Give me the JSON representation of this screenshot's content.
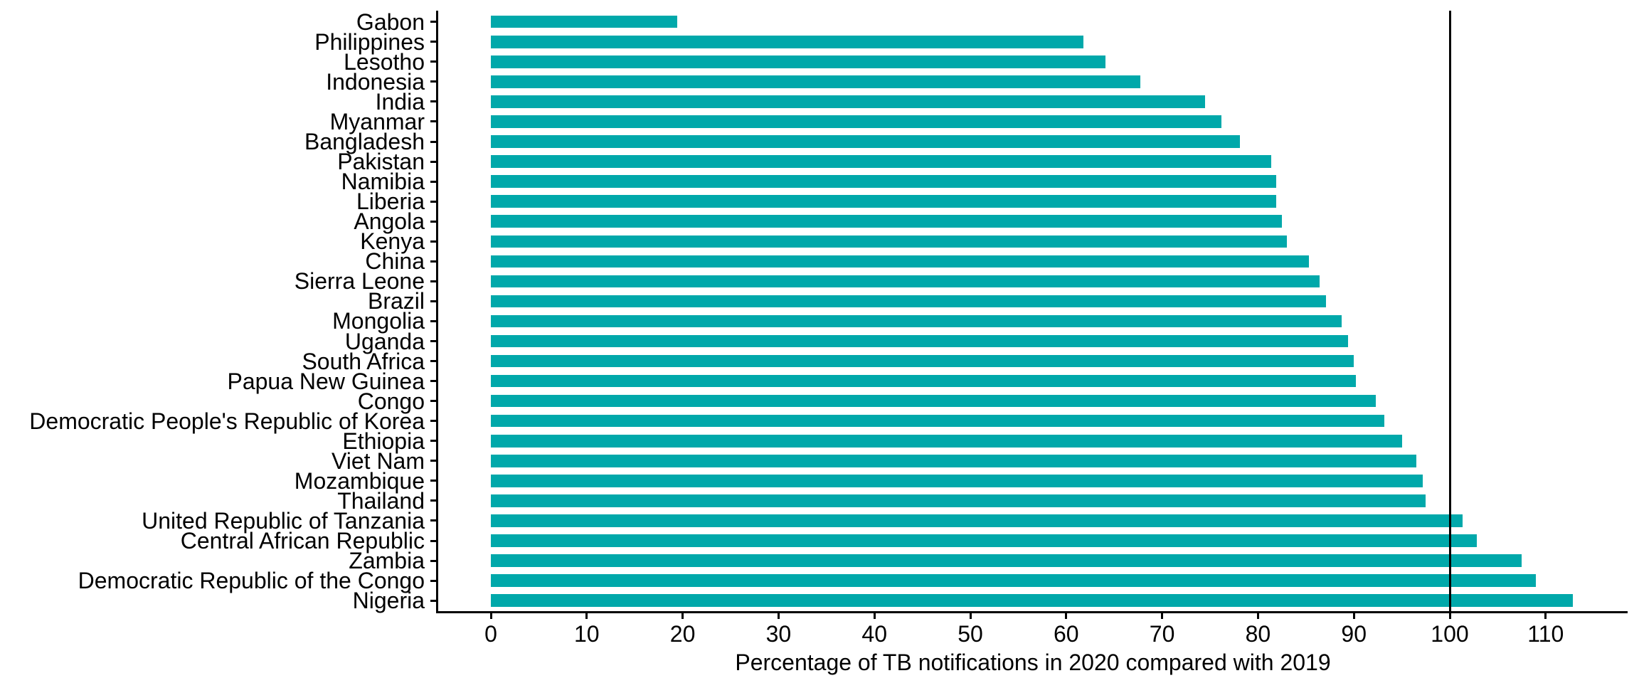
{
  "chart_data": {
    "type": "bar",
    "orientation": "horizontal",
    "title": "",
    "xlabel": "Percentage of TB notifications in 2020 compared with 2019",
    "ylabel": "",
    "categories": [
      "Gabon",
      "Philippines",
      "Lesotho",
      "Indonesia",
      "India",
      "Myanmar",
      "Bangladesh",
      "Pakistan",
      "Namibia",
      "Liberia",
      "Angola",
      "Kenya",
      "China",
      "Sierra Leone",
      "Brazil",
      "Mongolia",
      "Uganda",
      "South Africa",
      "Papua New Guinea",
      "Congo",
      "Democratic People's Republic of Korea",
      "Ethiopia",
      "Viet Nam",
      "Mozambique",
      "Thailand",
      "United Republic of Tanzania",
      "Central African Republic",
      "Zambia",
      "Democratic Republic of the Congo",
      "Nigeria"
    ],
    "values": [
      19.4,
      61.8,
      64.1,
      67.7,
      74.5,
      76.2,
      78.1,
      81.4,
      81.9,
      81.9,
      82.5,
      83.0,
      85.3,
      86.4,
      87.1,
      88.7,
      89.4,
      90.0,
      90.2,
      92.3,
      93.2,
      95.0,
      96.5,
      97.2,
      97.5,
      101.3,
      102.8,
      107.5,
      109.0,
      112.8
    ],
    "x_ticks": [
      0,
      10,
      20,
      30,
      40,
      50,
      60,
      70,
      80,
      90,
      100,
      110
    ],
    "xlim": [
      -5.6,
      118.7
    ],
    "reference_line_x": 100,
    "bar_color": "#00A8AA",
    "axis_color": "#000000",
    "grid": false,
    "legend": false
  }
}
